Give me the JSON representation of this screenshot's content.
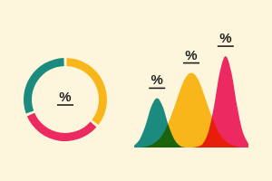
{
  "chart_data": [
    {
      "type": "donut",
      "values": [
        36,
        33,
        31
      ],
      "colors": [
        "#f9b61a",
        "#ec2960",
        "#1b8a7f"
      ],
      "annotations": [
        "%"
      ]
    },
    {
      "type": "area",
      "x": [
        0,
        1,
        2,
        3,
        4,
        5,
        6,
        7,
        8,
        9,
        10,
        11,
        12,
        13,
        14,
        15,
        16,
        17,
        18,
        19,
        20
      ],
      "xlim": [
        0,
        20
      ],
      "ylim": [
        0,
        100
      ],
      "tick_labels": false,
      "series": [
        {
          "color": "#1b8a7f",
          "values": [
            2,
            9,
            24,
            44,
            53,
            44,
            24,
            9,
            2,
            0,
            0,
            0,
            0,
            0,
            0,
            0,
            0,
            0,
            0,
            0,
            0
          ]
        },
        {
          "color": "#f9b61a",
          "values": [
            0,
            0,
            1,
            3,
            7,
            14,
            27,
            43,
            61,
            75,
            80,
            75,
            61,
            43,
            27,
            14,
            7,
            3,
            1,
            0,
            0
          ]
        },
        {
          "color": "#ec2960",
          "values": [
            0,
            0,
            0,
            0,
            0,
            0,
            0,
            0,
            0,
            0,
            0,
            1,
            4,
            17,
            45,
            81,
            98,
            81,
            45,
            17,
            4
          ]
        }
      ],
      "annotations": [
        "%",
        "%",
        "%"
      ]
    }
  ]
}
